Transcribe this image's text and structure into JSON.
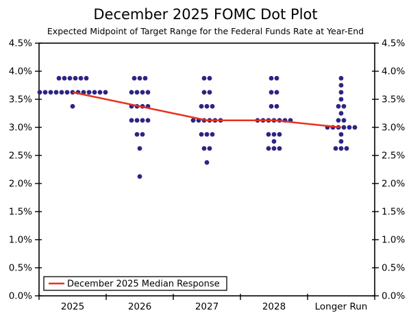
{
  "header": {
    "title": "December 2025 FOMC Dot Plot",
    "subtitle": "Expected Midpoint of Target Range for the Federal Funds Rate at Year-End"
  },
  "chart_data": {
    "type": "scatter",
    "title": "December 2025 FOMC Dot Plot",
    "subtitle": "Expected Midpoint of Target Range for the Federal Funds Rate at Year-End",
    "categories": [
      "2025",
      "2026",
      "2027",
      "2028",
      "Longer Run"
    ],
    "ylim": [
      0,
      4.5
    ],
    "ytick_labels": [
      "0.0%",
      "0.5%",
      "1.0%",
      "1.5%",
      "2.0%",
      "2.5%",
      "3.0%",
      "3.5%",
      "4.0%",
      "4.5%"
    ],
    "ytick_values": [
      0,
      0.5,
      1.0,
      1.5,
      2.0,
      2.5,
      3.0,
      3.5,
      4.0,
      4.5
    ],
    "y_axis_labels_on": "both sides",
    "grid": "off",
    "dot_color": "#2d2483",
    "dot_columns": [
      {
        "category": "2025",
        "dots": [
          {
            "value": 3.875,
            "count": 6
          },
          {
            "value": 3.625,
            "count": 13
          },
          {
            "value": 3.375,
            "count": 1
          }
        ]
      },
      {
        "category": "2026",
        "dots": [
          {
            "value": 3.875,
            "count": 3
          },
          {
            "value": 3.625,
            "count": 4
          },
          {
            "value": 3.375,
            "count": 4
          },
          {
            "value": 3.125,
            "count": 4
          },
          {
            "value": 2.875,
            "count": 2
          },
          {
            "value": 2.625,
            "count": 1
          },
          {
            "value": 2.125,
            "count": 1
          }
        ]
      },
      {
        "category": "2027",
        "dots": [
          {
            "value": 3.875,
            "count": 2
          },
          {
            "value": 3.625,
            "count": 2
          },
          {
            "value": 3.375,
            "count": 3
          },
          {
            "value": 3.125,
            "count": 6
          },
          {
            "value": 2.875,
            "count": 3
          },
          {
            "value": 2.625,
            "count": 2
          },
          {
            "value": 2.375,
            "count": 1
          }
        ]
      },
      {
        "category": "2028",
        "dots": [
          {
            "value": 3.875,
            "count": 2
          },
          {
            "value": 3.625,
            "count": 2
          },
          {
            "value": 3.375,
            "count": 2
          },
          {
            "value": 3.125,
            "count": 7
          },
          {
            "value": 2.875,
            "count": 3
          },
          {
            "value": 2.75,
            "count": 1
          },
          {
            "value": 2.625,
            "count": 3
          }
        ]
      },
      {
        "category": "Longer Run",
        "dots": [
          {
            "value": 3.875,
            "count": 1
          },
          {
            "value": 3.75,
            "count": 1
          },
          {
            "value": 3.625,
            "count": 1
          },
          {
            "value": 3.5,
            "count": 1
          },
          {
            "value": 3.375,
            "count": 2
          },
          {
            "value": 3.25,
            "count": 1
          },
          {
            "value": 3.125,
            "count": 2
          },
          {
            "value": 3.0,
            "count": 6
          },
          {
            "value": 2.875,
            "count": 1
          },
          {
            "value": 2.75,
            "count": 1
          },
          {
            "value": 2.625,
            "count": 3
          }
        ]
      }
    ],
    "median_series": {
      "name": "December 2025 Median Response",
      "values": [
        3.625,
        3.375,
        3.125,
        3.125,
        3.0
      ],
      "color": "#e8321f"
    },
    "legend": {
      "label": "December 2025 Median Response",
      "position": "lower left"
    }
  }
}
